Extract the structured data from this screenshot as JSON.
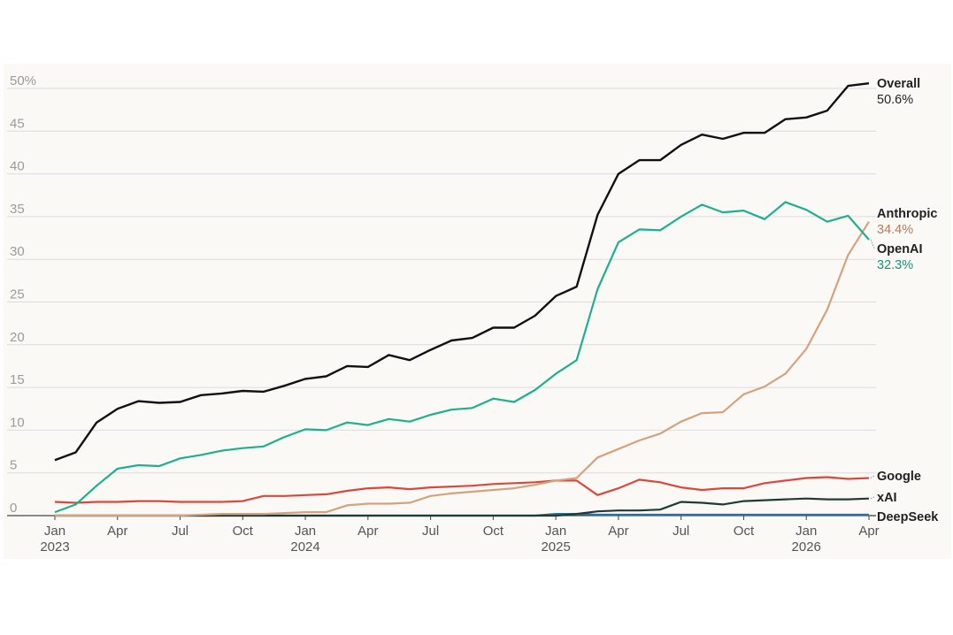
{
  "chart_data": {
    "type": "line",
    "title": "",
    "xlabel": "",
    "ylabel": "",
    "ylim": [
      0,
      50
    ],
    "yticks": [
      "0",
      "5",
      "10",
      "15",
      "20",
      "25",
      "30",
      "35",
      "40",
      "45",
      "50%"
    ],
    "grid": "horizontal",
    "legend": "direct labels at line ends (right)",
    "x_ticks": [
      {
        "month": "2023-01",
        "label": "Jan",
        "year": "2023"
      },
      {
        "month": "2023-04",
        "label": "Apr",
        "year": ""
      },
      {
        "month": "2023-07",
        "label": "Jul",
        "year": ""
      },
      {
        "month": "2023-10",
        "label": "Oct",
        "year": ""
      },
      {
        "month": "2024-01",
        "label": "Jan",
        "year": "2024"
      },
      {
        "month": "2024-04",
        "label": "Apr",
        "year": ""
      },
      {
        "month": "2024-07",
        "label": "Jul",
        "year": ""
      },
      {
        "month": "2024-10",
        "label": "Oct",
        "year": ""
      },
      {
        "month": "2025-01",
        "label": "Jan",
        "year": "2025"
      },
      {
        "month": "2025-04",
        "label": "Apr",
        "year": ""
      },
      {
        "month": "2025-07",
        "label": "Jul",
        "year": ""
      },
      {
        "month": "2025-10",
        "label": "Oct",
        "year": ""
      },
      {
        "month": "2026-01",
        "label": "Jan",
        "year": "2026"
      },
      {
        "month": "2026-04",
        "label": "Apr",
        "year": ""
      }
    ],
    "months": [
      "2023-01",
      "2023-02",
      "2023-03",
      "2023-04",
      "2023-05",
      "2023-06",
      "2023-07",
      "2023-08",
      "2023-09",
      "2023-10",
      "2023-11",
      "2023-12",
      "2024-01",
      "2024-02",
      "2024-03",
      "2024-04",
      "2024-05",
      "2024-06",
      "2024-07",
      "2024-08",
      "2024-09",
      "2024-10",
      "2024-11",
      "2024-12",
      "2025-01",
      "2025-02",
      "2025-03",
      "2025-04",
      "2025-05",
      "2025-06",
      "2025-07",
      "2025-08",
      "2025-09",
      "2025-10",
      "2025-11",
      "2025-12",
      "2026-01",
      "2026-02",
      "2026-03",
      "2026-04"
    ],
    "series": [
      {
        "name": "Overall",
        "end_label": "50.6%",
        "color": "#111111",
        "values": [
          6.5,
          7.4,
          10.9,
          12.5,
          13.4,
          13.2,
          13.3,
          14.1,
          14.3,
          14.6,
          14.5,
          15.2,
          16.0,
          16.3,
          17.5,
          17.4,
          18.8,
          18.2,
          19.4,
          20.5,
          20.8,
          22.0,
          22.0,
          23.4,
          25.7,
          26.8,
          35.2,
          40.0,
          41.6,
          41.6,
          43.4,
          44.6,
          44.1,
          44.8,
          44.8,
          46.4,
          46.6,
          47.4,
          50.3,
          50.6
        ]
      },
      {
        "name": "Anthropic",
        "end_label": "34.4%",
        "color": "#d4a27f",
        "values": [
          0,
          0,
          0,
          0,
          0,
          0,
          0,
          0.1,
          0.2,
          0.2,
          0.2,
          0.3,
          0.4,
          0.4,
          1.2,
          1.4,
          1.4,
          1.5,
          2.3,
          2.6,
          2.8,
          3.0,
          3.2,
          3.6,
          4.1,
          4.4,
          6.8,
          7.8,
          8.8,
          9.6,
          11.0,
          12.0,
          12.1,
          14.2,
          15.1,
          16.6,
          19.5,
          24.1,
          30.5,
          34.4
        ]
      },
      {
        "name": "OpenAI",
        "end_label": "32.3%",
        "color": "#1db08e",
        "values": [
          0.4,
          1.3,
          3.5,
          5.5,
          5.9,
          5.8,
          6.7,
          7.1,
          7.6,
          7.9,
          8.1,
          9.2,
          10.1,
          10.0,
          10.9,
          10.6,
          11.3,
          11.0,
          11.8,
          12.4,
          12.6,
          13.7,
          13.3,
          14.7,
          16.6,
          18.2,
          26.5,
          32.0,
          33.5,
          33.4,
          35.0,
          36.4,
          35.5,
          35.7,
          34.7,
          36.7,
          35.8,
          34.4,
          35.1,
          32.3
        ]
      },
      {
        "name": "Google",
        "end_label": "",
        "color": "#d9483b",
        "values": [
          1.6,
          1.5,
          1.6,
          1.6,
          1.7,
          1.7,
          1.6,
          1.6,
          1.6,
          1.7,
          2.3,
          2.3,
          2.4,
          2.5,
          2.9,
          3.2,
          3.3,
          3.1,
          3.3,
          3.4,
          3.5,
          3.7,
          3.8,
          3.9,
          4.1,
          4.1,
          2.4,
          3.2,
          4.2,
          3.9,
          3.3,
          3.0,
          3.2,
          3.2,
          3.8,
          4.1,
          4.4,
          4.5,
          4.3,
          4.4
        ]
      },
      {
        "name": "xAI",
        "end_label": "",
        "color": "#1f3b35",
        "values": [
          0,
          0,
          0,
          0,
          0,
          0,
          0,
          0,
          0,
          0,
          0,
          0,
          0,
          0,
          0,
          0,
          0,
          0,
          0,
          0,
          0,
          0,
          0,
          0,
          0,
          0.2,
          0.5,
          0.6,
          0.6,
          0.7,
          1.6,
          1.5,
          1.3,
          1.7,
          1.8,
          1.9,
          2.0,
          1.9,
          1.9,
          2.0
        ]
      },
      {
        "name": "DeepSeek",
        "end_label": "",
        "color": "#2b6ea3",
        "values": [
          0,
          0,
          0,
          0,
          0,
          0,
          0,
          0,
          0,
          0,
          0,
          0,
          0,
          0,
          0,
          0,
          0,
          0,
          0,
          0,
          0,
          0,
          0,
          0,
          0.2,
          0.2,
          0.1,
          0.1,
          0.1,
          0.1,
          0.1,
          0.1,
          0.1,
          0.1,
          0.1,
          0.1,
          0.1,
          0.1,
          0.1,
          0.1
        ]
      }
    ]
  }
}
